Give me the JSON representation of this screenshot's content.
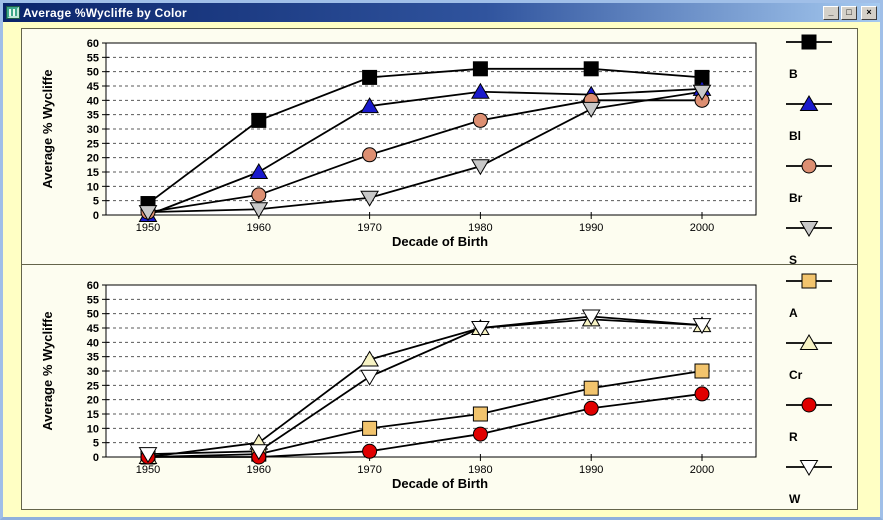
{
  "window": {
    "title": "Average %Wycliffe by Color",
    "controls": {
      "minimize": "_",
      "maximize": "□",
      "close": "×"
    }
  },
  "colors": {
    "client_bg": "#ffffc4",
    "panel_bg": "#fdfdf0",
    "panel_border": "#64644b",
    "plot_bg": "#ffffff",
    "gridline": "#5a5a5a",
    "line": "#000000",
    "titlebar_left": "#0a246a",
    "titlebar_right": "#a6caf0"
  },
  "chart_data": [
    {
      "type": "line",
      "title": "",
      "xlabel": "Decade of Birth",
      "ylabel": "Average % Wycliffe",
      "x": [
        1950,
        1960,
        1970,
        1980,
        1990,
        2000
      ],
      "ylim": [
        0,
        60
      ],
      "ytick_step": 5,
      "grid": "horizontal-dashed",
      "legend_position": "right-outside",
      "series": [
        {
          "name": "B",
          "marker": "square",
          "color": "#000000",
          "values": [
            4,
            33,
            48,
            51,
            51,
            48
          ]
        },
        {
          "name": "Bl",
          "marker": "triangle-up",
          "color": "#1a1acd",
          "values": [
            0,
            15,
            38,
            43,
            42,
            44
          ]
        },
        {
          "name": "Br",
          "marker": "circle",
          "color": "#dd8f72",
          "values": [
            1,
            7,
            21,
            33,
            40,
            40
          ]
        },
        {
          "name": "S",
          "marker": "triangle-down",
          "color": "#c8c8c8",
          "values": [
            1,
            2,
            6,
            17,
            37,
            43
          ]
        }
      ]
    },
    {
      "type": "line",
      "title": "",
      "xlabel": "Decade of Birth",
      "ylabel": "Average % Wycliffe",
      "x": [
        1950,
        1960,
        1970,
        1980,
        1990,
        2000
      ],
      "ylim": [
        0,
        60
      ],
      "ytick_step": 5,
      "grid": "horizontal-dashed",
      "legend_position": "right-outside",
      "series": [
        {
          "name": "A",
          "marker": "square",
          "color": "#f2c46d",
          "values": [
            0,
            1,
            10,
            15,
            24,
            30
          ]
        },
        {
          "name": "Cr",
          "marker": "triangle-up",
          "color": "#f7f3c4",
          "values": [
            0,
            5,
            34,
            45,
            48,
            46
          ]
        },
        {
          "name": "R",
          "marker": "circle",
          "color": "#e00000",
          "values": [
            0,
            0,
            2,
            8,
            17,
            22
          ]
        },
        {
          "name": "W",
          "marker": "triangle-down",
          "color": "#ffffff",
          "values": [
            1,
            2,
            28,
            45,
            49,
            46
          ]
        }
      ]
    }
  ]
}
